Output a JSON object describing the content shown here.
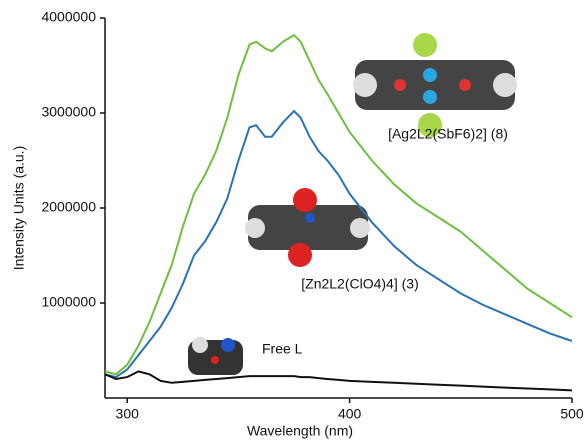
{
  "chart_data": {
    "type": "line",
    "xlabel": "Wavelength (nm)",
    "ylabel": "Intensity Units (a.u.)",
    "xlim": [
      290,
      500
    ],
    "xticks": [
      300,
      400,
      500
    ],
    "ylim": [
      0,
      4000000
    ],
    "yticks": [
      1000000,
      2000000,
      3000000,
      4000000
    ],
    "x": [
      290,
      295,
      300,
      305,
      310,
      315,
      320,
      325,
      330,
      335,
      340,
      345,
      350,
      355,
      358,
      362,
      365,
      370,
      375,
      378,
      382,
      386,
      390,
      395,
      400,
      410,
      420,
      430,
      440,
      450,
      460,
      470,
      480,
      490,
      500
    ],
    "series": [
      {
        "name": "[Ag2L2(SbF6)2] (8)",
        "color": "#6cbf3f",
        "values": [
          280000,
          250000,
          350000,
          550000,
          800000,
          1100000,
          1400000,
          1800000,
          2150000,
          2350000,
          2600000,
          2950000,
          3400000,
          3720000,
          3750000,
          3680000,
          3650000,
          3750000,
          3820000,
          3750000,
          3550000,
          3350000,
          3200000,
          3000000,
          2800000,
          2500000,
          2250000,
          2050000,
          1900000,
          1750000,
          1550000,
          1350000,
          1150000,
          1000000,
          850000
        ]
      },
      {
        "name": "[Zn2L2(ClO4)4] (3)",
        "color": "#2b72b5",
        "values": [
          250000,
          220000,
          300000,
          450000,
          600000,
          750000,
          950000,
          1200000,
          1500000,
          1650000,
          1850000,
          2100000,
          2500000,
          2850000,
          2870000,
          2750000,
          2750000,
          2900000,
          3020000,
          2950000,
          2750000,
          2600000,
          2500000,
          2350000,
          2150000,
          1850000,
          1600000,
          1400000,
          1250000,
          1100000,
          980000,
          880000,
          780000,
          680000,
          600000
        ]
      },
      {
        "name": "Free L",
        "color": "#111111",
        "values": [
          250000,
          200000,
          220000,
          280000,
          250000,
          180000,
          160000,
          170000,
          180000,
          190000,
          200000,
          210000,
          220000,
          230000,
          230000,
          230000,
          230000,
          230000,
          230000,
          220000,
          220000,
          210000,
          200000,
          190000,
          180000,
          170000,
          160000,
          150000,
          140000,
          130000,
          120000,
          110000,
          100000,
          90000,
          80000
        ]
      }
    ]
  }
}
